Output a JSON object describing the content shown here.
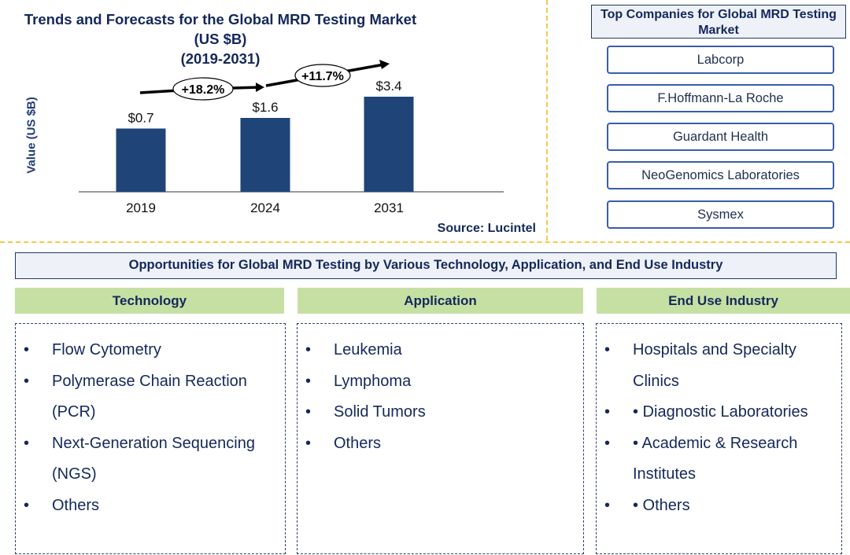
{
  "chart_data": {
    "type": "bar",
    "title": "Trends and Forecasts for the Global MRD Testing Market (US $B)",
    "subtitle": "(2019-2031)",
    "ylabel": "Value (US $B)",
    "xlabel": "",
    "categories": [
      "2019",
      "2024",
      "2031"
    ],
    "values": [
      0.7,
      1.6,
      3.4
    ],
    "data_labels": [
      "$0.7",
      "$1.6",
      "$3.4"
    ],
    "annotations": [
      "+18.2%",
      "+11.7%"
    ],
    "bar_color": "#1f4478",
    "grid": false,
    "source": "Source: Lucintel"
  },
  "companies": {
    "title": "Top Companies for Global MRD Testing  Market",
    "items": [
      "Labcorp",
      "F.Hoffmann-La Roche",
      "Guardant Health",
      "NeoGenomics Laboratories",
      "Sysmex"
    ]
  },
  "opportunities": {
    "title": "Opportunities for Global MRD Testing by Various Technology, Application, and End Use Industry",
    "header_color": "#c6e0a4",
    "columns": [
      {
        "label": "Technology",
        "items": [
          "Flow Cytometry",
          "Polymerase Chain Reaction (PCR)",
          "Next-Generation Sequencing (NGS)",
          "Others"
        ]
      },
      {
        "label": "Application",
        "items": [
          "Leukemia",
          "Lymphoma",
          "Solid Tumors",
          "Others"
        ]
      },
      {
        "label": "End Use Industry",
        "items": [
          "Hospitals and Specialty Clinics",
          "• Diagnostic Laboratories",
          "• Academic & Research Institutes",
          "• Others"
        ]
      }
    ]
  }
}
